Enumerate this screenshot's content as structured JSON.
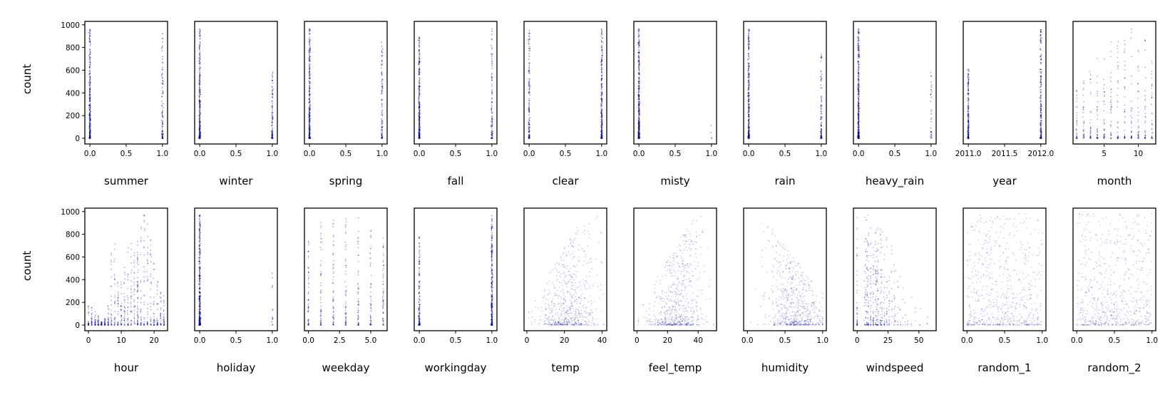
{
  "colors": {
    "points": "#00008b",
    "frame": "#000000"
  },
  "chart_data": [
    {
      "type": "scatter",
      "xlabel": "summer",
      "ylabel": "count",
      "xlim": [
        -0.07,
        1.07
      ],
      "ylim": [
        -50,
        1030
      ],
      "x_ticks": [
        0.0,
        0.5,
        1.0
      ],
      "x_tick_labels": [
        "0.0",
        "0.5",
        "1.0"
      ],
      "y_ticks": [
        0,
        200,
        400,
        600,
        800,
        1000
      ],
      "y_tick_labels": [
        "0",
        "200",
        "400",
        "600",
        "800",
        "1000"
      ],
      "x_kind": "binary",
      "x_values": [
        0,
        1
      ],
      "y_max_by_x": [
        960,
        970
      ],
      "weights": [
        0.75,
        0.25
      ]
    },
    {
      "type": "scatter",
      "xlabel": "winter",
      "ylabel": "",
      "xlim": [
        -0.07,
        1.07
      ],
      "ylim": [
        -50,
        1030
      ],
      "x_ticks": [
        0.0,
        0.5,
        1.0
      ],
      "x_tick_labels": [
        "0.0",
        "0.5",
        "1.0"
      ],
      "y_ticks": [],
      "y_tick_labels": [],
      "x_kind": "binary",
      "x_values": [
        0,
        1
      ],
      "y_max_by_x": [
        970,
        600
      ],
      "weights": [
        0.75,
        0.25
      ]
    },
    {
      "type": "scatter",
      "xlabel": "spring",
      "ylabel": "",
      "xlim": [
        -0.07,
        1.07
      ],
      "ylim": [
        -50,
        1030
      ],
      "x_ticks": [
        0.0,
        0.5,
        1.0
      ],
      "x_tick_labels": [
        "0.0",
        "0.5",
        "1.0"
      ],
      "y_ticks": [],
      "y_tick_labels": [],
      "x_kind": "binary",
      "x_values": [
        0,
        1
      ],
      "y_max_by_x": [
        970,
        870
      ],
      "weights": [
        0.75,
        0.25
      ]
    },
    {
      "type": "scatter",
      "xlabel": "fall",
      "ylabel": "",
      "xlim": [
        -0.07,
        1.07
      ],
      "ylim": [
        -50,
        1030
      ],
      "x_ticks": [
        0.0,
        0.5,
        1.0
      ],
      "x_tick_labels": [
        "0.0",
        "0.5",
        "1.0"
      ],
      "y_ticks": [],
      "y_tick_labels": [],
      "x_kind": "binary",
      "x_values": [
        0,
        1
      ],
      "y_max_by_x": [
        890,
        970
      ],
      "weights": [
        0.75,
        0.25
      ]
    },
    {
      "type": "scatter",
      "xlabel": "clear",
      "ylabel": "",
      "xlim": [
        -0.07,
        1.07
      ],
      "ylim": [
        -50,
        1030
      ],
      "x_ticks": [
        0.0,
        0.5,
        1.0
      ],
      "x_tick_labels": [
        "0.0",
        "0.5",
        "1.0"
      ],
      "y_ticks": [],
      "y_tick_labels": [],
      "x_kind": "binary",
      "x_values": [
        0,
        1
      ],
      "y_max_by_x": [
        960,
        970
      ],
      "weights": [
        0.35,
        0.65
      ]
    },
    {
      "type": "scatter",
      "xlabel": "misty",
      "ylabel": "",
      "xlim": [
        -0.07,
        1.07
      ],
      "ylim": [
        -50,
        1030
      ],
      "x_ticks": [
        0.0,
        0.5,
        1.0
      ],
      "x_tick_labels": [
        "0.0",
        "0.5",
        "1.0"
      ],
      "y_ticks": [],
      "y_tick_labels": [],
      "x_kind": "binary",
      "x_values": [
        0,
        1
      ],
      "y_max_by_x": [
        970,
        170
      ],
      "weights": [
        0.995,
        0.005
      ]
    },
    {
      "type": "scatter",
      "xlabel": "rain",
      "ylabel": "",
      "xlim": [
        -0.07,
        1.07
      ],
      "ylim": [
        -50,
        1030
      ],
      "x_ticks": [
        0.0,
        0.5,
        1.0
      ],
      "x_tick_labels": [
        "0.0",
        "0.5",
        "1.0"
      ],
      "y_ticks": [],
      "y_tick_labels": [],
      "x_kind": "binary",
      "x_values": [
        0,
        1
      ],
      "y_max_by_x": [
        970,
        740
      ],
      "weights": [
        0.75,
        0.25
      ]
    },
    {
      "type": "scatter",
      "xlabel": "heavy_rain",
      "ylabel": "",
      "xlim": [
        -0.07,
        1.07
      ],
      "ylim": [
        -50,
        1030
      ],
      "x_ticks": [
        0.0,
        0.5,
        1.0
      ],
      "x_tick_labels": [
        "0.0",
        "0.5",
        "1.0"
      ],
      "y_ticks": [],
      "y_tick_labels": [],
      "x_kind": "binary",
      "x_values": [
        0,
        1
      ],
      "y_max_by_x": [
        970,
        590
      ],
      "weights": [
        0.92,
        0.08
      ]
    },
    {
      "type": "scatter",
      "xlabel": "year",
      "ylabel": "",
      "xlim": [
        2010.93,
        2012.07
      ],
      "ylim": [
        -50,
        1030
      ],
      "x_ticks": [
        2011.0,
        2011.5,
        2012.0
      ],
      "x_tick_labels": [
        "2011.0",
        "2011.5",
        "2012.0"
      ],
      "y_ticks": [],
      "y_tick_labels": [],
      "x_kind": "binary",
      "x_values": [
        2011,
        2012
      ],
      "y_max_by_x": [
        610,
        970
      ],
      "weights": [
        0.5,
        0.5
      ]
    },
    {
      "type": "scatter",
      "xlabel": "month",
      "ylabel": "",
      "xlim": [
        0.45,
        12.55
      ],
      "ylim": [
        -50,
        1030
      ],
      "x_ticks": [
        5,
        10
      ],
      "x_tick_labels": [
        "5",
        "10"
      ],
      "y_ticks": [],
      "y_tick_labels": [],
      "x_kind": "discrete",
      "x_values": [
        1,
        2,
        3,
        4,
        5,
        6,
        7,
        8,
        9,
        10,
        11,
        12
      ],
      "y_max_by_x": [
        430,
        530,
        800,
        820,
        870,
        870,
        860,
        890,
        970,
        960,
        880,
        700
      ]
    },
    {
      "type": "scatter",
      "xlabel": "hour",
      "ylabel": "count",
      "xlim": [
        -1.1,
        24.1
      ],
      "ylim": [
        -50,
        1030
      ],
      "x_ticks": [
        0,
        10,
        20
      ],
      "x_tick_labels": [
        "0",
        "10",
        "20"
      ],
      "y_ticks": [
        0,
        200,
        400,
        600,
        800,
        1000
      ],
      "y_tick_labels": [
        "0",
        "200",
        "400",
        "600",
        "800",
        "1000"
      ],
      "x_kind": "discrete",
      "x_values": [
        0,
        1,
        2,
        3,
        4,
        5,
        6,
        7,
        8,
        9,
        10,
        11,
        12,
        13,
        14,
        15,
        15,
        16,
        17,
        18,
        19,
        20,
        21,
        22,
        23
      ],
      "y_max_by_x": [
        180,
        160,
        120,
        90,
        30,
        60,
        210,
        640,
        830,
        420,
        400,
        550,
        700,
        730,
        720,
        720,
        750,
        890,
        970,
        960,
        770,
        580,
        450,
        350,
        260
      ]
    },
    {
      "type": "scatter",
      "xlabel": "holiday",
      "ylabel": "",
      "xlim": [
        -0.07,
        1.07
      ],
      "ylim": [
        -50,
        1030
      ],
      "x_ticks": [
        0.0,
        0.5,
        1.0
      ],
      "x_tick_labels": [
        "0.0",
        "0.5",
        "1.0"
      ],
      "y_ticks": [],
      "y_tick_labels": [],
      "x_kind": "binary",
      "x_values": [
        0,
        1
      ],
      "y_max_by_x": [
        970,
        560
      ],
      "weights": [
        0.97,
        0.03
      ]
    },
    {
      "type": "scatter",
      "xlabel": "weekday",
      "ylabel": "",
      "xlim": [
        -0.32,
        6.32
      ],
      "ylim": [
        -50,
        1030
      ],
      "x_ticks": [
        0.0,
        2.5,
        5.0
      ],
      "x_tick_labels": [
        "0.0",
        "2.5",
        "5.0"
      ],
      "y_ticks": [],
      "y_tick_labels": [],
      "x_kind": "discrete",
      "x_values": [
        0,
        1,
        2,
        3,
        4,
        5,
        6
      ],
      "y_max_by_x": [
        780,
        960,
        960,
        970,
        960,
        840,
        780
      ]
    },
    {
      "type": "scatter",
      "xlabel": "workingday",
      "ylabel": "",
      "xlim": [
        -0.07,
        1.07
      ],
      "ylim": [
        -50,
        1030
      ],
      "x_ticks": [
        0.0,
        0.5,
        1.0
      ],
      "x_tick_labels": [
        "0.0",
        "0.5",
        "1.0"
      ],
      "y_ticks": [],
      "y_tick_labels": [],
      "x_kind": "binary",
      "x_values": [
        0,
        1
      ],
      "y_max_by_x": [
        780,
        970
      ],
      "weights": [
        0.32,
        0.68
      ]
    },
    {
      "type": "scatter",
      "xlabel": "temp",
      "ylabel": "",
      "xlim": [
        -1.5,
        42.5
      ],
      "ylim": [
        -50,
        1030
      ],
      "x_ticks": [
        0,
        20,
        40
      ],
      "x_tick_labels": [
        "0",
        "20",
        "40"
      ],
      "y_ticks": [],
      "y_tick_labels": [],
      "x_kind": "continuous",
      "x_center": 22,
      "x_spread": 8,
      "x_min": 1,
      "x_max": 41
    },
    {
      "type": "scatter",
      "xlabel": "feel_temp",
      "ylabel": "",
      "xlim": [
        -2,
        52
      ],
      "ylim": [
        -50,
        1030
      ],
      "x_ticks": [
        0,
        20,
        40
      ],
      "x_tick_labels": [
        "0",
        "20",
        "40"
      ],
      "y_ticks": [],
      "y_tick_labels": [],
      "x_kind": "continuous",
      "x_center": 26,
      "x_spread": 9,
      "x_min": 1,
      "x_max": 50
    },
    {
      "type": "scatter",
      "xlabel": "humidity",
      "ylabel": "",
      "xlim": [
        -0.05,
        1.05
      ],
      "ylim": [
        -50,
        1030
      ],
      "x_ticks": [
        0.0,
        0.5,
        1.0
      ],
      "x_tick_labels": [
        "0.0",
        "0.5",
        "1.0"
      ],
      "y_ticks": [],
      "y_tick_labels": [],
      "x_kind": "continuous",
      "x_center": 0.63,
      "x_spread": 0.19,
      "x_min": 0.0,
      "x_max": 1.0
    },
    {
      "type": "scatter",
      "xlabel": "windspeed",
      "ylabel": "",
      "xlim": [
        -3,
        64
      ],
      "ylim": [
        -50,
        1030
      ],
      "x_ticks": [
        0,
        25,
        50
      ],
      "x_tick_labels": [
        "0",
        "25",
        "50"
      ],
      "y_ticks": [],
      "y_tick_labels": [],
      "x_kind": "discrete_skewed",
      "x_values": [
        0,
        6,
        7,
        8,
        9,
        11,
        13,
        15,
        16,
        17,
        19,
        20,
        22,
        24,
        26,
        28,
        30,
        31,
        33,
        35,
        37,
        39,
        41,
        44,
        47,
        51,
        57
      ],
      "x_weights": [
        12,
        4,
        6,
        8,
        9,
        9,
        9,
        8,
        8,
        7,
        7,
        6,
        5,
        5,
        4,
        3,
        3,
        2,
        2,
        1.5,
        1,
        1,
        0.7,
        0.5,
        0.3,
        0.2,
        0.1
      ],
      "y_max_by_x": [
        980,
        960,
        940,
        960,
        970,
        940,
        970,
        960,
        950,
        930,
        940,
        900,
        880,
        850,
        800,
        700,
        650,
        600,
        500,
        450,
        400,
        350,
        300,
        250,
        200,
        150,
        100
      ]
    },
    {
      "type": "scatter",
      "xlabel": "random_1",
      "ylabel": "",
      "xlim": [
        -0.05,
        1.05
      ],
      "ylim": [
        -50,
        1030
      ],
      "x_ticks": [
        0.0,
        0.5,
        1.0
      ],
      "x_tick_labels": [
        "0.0",
        "0.5",
        "1.0"
      ],
      "y_ticks": [],
      "y_tick_labels": [],
      "x_kind": "uniform",
      "x_min": 0,
      "x_max": 1
    },
    {
      "type": "scatter",
      "xlabel": "random_2",
      "ylabel": "",
      "xlim": [
        -0.05,
        1.05
      ],
      "ylim": [
        -50,
        1030
      ],
      "x_ticks": [
        0.0,
        0.5,
        1.0
      ],
      "x_tick_labels": [
        "0.0",
        "0.5",
        "1.0"
      ],
      "y_ticks": [],
      "y_tick_labels": [],
      "x_kind": "uniform",
      "x_min": 0,
      "x_max": 1
    }
  ]
}
